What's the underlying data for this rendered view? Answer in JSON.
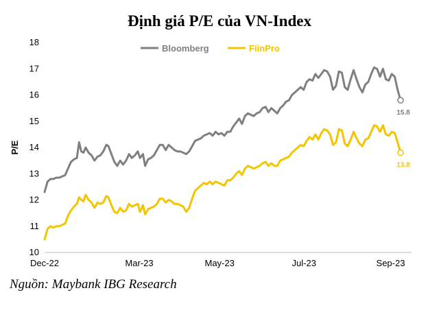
{
  "chart_data": {
    "type": "line",
    "title": "Định giá P/E của VN-Index",
    "ylabel": "P/E",
    "xlabel": "",
    "ylim": [
      10,
      18
    ],
    "yticks": [
      10,
      11,
      12,
      13,
      14,
      15,
      16,
      17,
      18
    ],
    "xlim": [
      0,
      100
    ],
    "xticks": [
      {
        "x": 0,
        "label": "Dec-22"
      },
      {
        "x": 25.8,
        "label": "Mar-23"
      },
      {
        "x": 47.7,
        "label": "May-23"
      },
      {
        "x": 70.7,
        "label": "Jul-23"
      },
      {
        "x": 94.3,
        "label": "Sep-23"
      }
    ],
    "grid": false,
    "legend": "top-center",
    "series": [
      {
        "name": "Bloomberg",
        "color": "#7f7f7f",
        "end_label": "15.8",
        "points": [
          [
            0,
            12.3
          ],
          [
            0.8,
            12.7
          ],
          [
            1.6,
            12.8
          ],
          [
            2.4,
            12.8
          ],
          [
            3.2,
            12.85
          ],
          [
            4.0,
            12.85
          ],
          [
            4.8,
            12.9
          ],
          [
            5.6,
            12.95
          ],
          [
            6.4,
            13.2
          ],
          [
            7.2,
            13.45
          ],
          [
            8.0,
            13.55
          ],
          [
            8.8,
            13.6
          ],
          [
            9.4,
            14.2
          ],
          [
            10.0,
            13.85
          ],
          [
            10.6,
            13.8
          ],
          [
            11.2,
            14.0
          ],
          [
            12.0,
            13.8
          ],
          [
            12.8,
            13.7
          ],
          [
            13.6,
            13.5
          ],
          [
            14.4,
            13.65
          ],
          [
            15.2,
            13.7
          ],
          [
            16.0,
            13.85
          ],
          [
            16.8,
            14.1
          ],
          [
            17.4,
            14.05
          ],
          [
            18.2,
            13.75
          ],
          [
            19.0,
            13.45
          ],
          [
            19.8,
            13.3
          ],
          [
            20.6,
            13.5
          ],
          [
            21.4,
            13.35
          ],
          [
            22.2,
            13.5
          ],
          [
            23.0,
            13.75
          ],
          [
            23.8,
            13.6
          ],
          [
            24.6,
            13.7
          ],
          [
            25.4,
            13.85
          ],
          [
            26.0,
            13.6
          ],
          [
            26.8,
            13.75
          ],
          [
            27.4,
            13.3
          ],
          [
            28.2,
            13.55
          ],
          [
            29.0,
            13.6
          ],
          [
            29.8,
            13.7
          ],
          [
            30.6,
            13.9
          ],
          [
            31.4,
            14.1
          ],
          [
            32.2,
            14.1
          ],
          [
            33.0,
            13.9
          ],
          [
            33.8,
            14.1
          ],
          [
            34.6,
            14.0
          ],
          [
            35.4,
            13.9
          ],
          [
            36.2,
            13.85
          ],
          [
            37.0,
            13.85
          ],
          [
            37.8,
            13.8
          ],
          [
            38.6,
            13.75
          ],
          [
            39.4,
            13.85
          ],
          [
            40.2,
            14.05
          ],
          [
            41.0,
            14.25
          ],
          [
            41.8,
            14.3
          ],
          [
            42.6,
            14.35
          ],
          [
            43.4,
            14.45
          ],
          [
            44.2,
            14.5
          ],
          [
            45.0,
            14.55
          ],
          [
            45.8,
            14.45
          ],
          [
            46.6,
            14.6
          ],
          [
            47.4,
            14.5
          ],
          [
            48.2,
            14.55
          ],
          [
            49.0,
            14.45
          ],
          [
            49.8,
            14.6
          ],
          [
            50.6,
            14.6
          ],
          [
            51.4,
            14.8
          ],
          [
            52.2,
            14.95
          ],
          [
            53.0,
            15.1
          ],
          [
            53.8,
            14.9
          ],
          [
            54.6,
            15.2
          ],
          [
            55.4,
            15.3
          ],
          [
            56.2,
            15.25
          ],
          [
            57.0,
            15.2
          ],
          [
            57.8,
            15.3
          ],
          [
            58.6,
            15.35
          ],
          [
            59.4,
            15.5
          ],
          [
            60.2,
            15.55
          ],
          [
            61.0,
            15.35
          ],
          [
            61.8,
            15.5
          ],
          [
            62.6,
            15.4
          ],
          [
            63.4,
            15.3
          ],
          [
            64.2,
            15.5
          ],
          [
            65.0,
            15.6
          ],
          [
            65.8,
            15.75
          ],
          [
            66.6,
            15.8
          ],
          [
            67.4,
            16.0
          ],
          [
            68.2,
            16.1
          ],
          [
            69.0,
            16.2
          ],
          [
            69.8,
            16.3
          ],
          [
            70.6,
            16.2
          ],
          [
            71.4,
            16.5
          ],
          [
            72.2,
            16.6
          ],
          [
            73.0,
            16.55
          ],
          [
            73.8,
            16.8
          ],
          [
            74.6,
            16.65
          ],
          [
            75.4,
            16.8
          ],
          [
            76.2,
            16.95
          ],
          [
            77.0,
            16.9
          ],
          [
            77.8,
            16.7
          ],
          [
            78.6,
            16.2
          ],
          [
            79.4,
            16.35
          ],
          [
            80.2,
            16.9
          ],
          [
            81.0,
            16.85
          ],
          [
            81.8,
            16.3
          ],
          [
            82.6,
            16.2
          ],
          [
            83.4,
            16.6
          ],
          [
            84.2,
            16.95
          ],
          [
            85.0,
            16.6
          ],
          [
            85.8,
            16.3
          ],
          [
            86.6,
            16.1
          ],
          [
            87.4,
            16.4
          ],
          [
            88.2,
            16.5
          ],
          [
            89.0,
            16.8
          ],
          [
            89.8,
            17.05
          ],
          [
            90.6,
            17.0
          ],
          [
            91.4,
            16.7
          ],
          [
            92.2,
            17.0
          ],
          [
            93.0,
            16.6
          ],
          [
            93.8,
            16.55
          ],
          [
            94.6,
            16.8
          ],
          [
            95.4,
            16.7
          ],
          [
            96.2,
            16.2
          ],
          [
            97.0,
            15.8
          ]
        ]
      },
      {
        "name": "FiinPro",
        "color": "#f5c400",
        "end_label": "13.8",
        "points": [
          [
            0,
            10.5
          ],
          [
            0.8,
            10.9
          ],
          [
            1.6,
            11.0
          ],
          [
            2.4,
            10.95
          ],
          [
            3.2,
            11.0
          ],
          [
            4.0,
            11.0
          ],
          [
            4.8,
            11.05
          ],
          [
            5.6,
            11.1
          ],
          [
            6.4,
            11.4
          ],
          [
            7.2,
            11.6
          ],
          [
            8.0,
            11.75
          ],
          [
            8.8,
            11.85
          ],
          [
            9.4,
            12.1
          ],
          [
            10.0,
            12.0
          ],
          [
            10.6,
            11.95
          ],
          [
            11.2,
            12.2
          ],
          [
            12.0,
            12.0
          ],
          [
            12.8,
            11.9
          ],
          [
            13.6,
            11.7
          ],
          [
            14.4,
            11.9
          ],
          [
            15.2,
            11.85
          ],
          [
            16.0,
            11.9
          ],
          [
            16.8,
            12.15
          ],
          [
            17.4,
            12.1
          ],
          [
            18.2,
            11.8
          ],
          [
            19.0,
            11.55
          ],
          [
            19.8,
            11.5
          ],
          [
            20.6,
            11.7
          ],
          [
            21.4,
            11.55
          ],
          [
            22.2,
            11.6
          ],
          [
            23.0,
            11.85
          ],
          [
            23.8,
            11.75
          ],
          [
            24.6,
            11.8
          ],
          [
            25.4,
            11.85
          ],
          [
            26.0,
            11.55
          ],
          [
            26.8,
            11.8
          ],
          [
            27.4,
            11.45
          ],
          [
            28.2,
            11.65
          ],
          [
            29.0,
            11.7
          ],
          [
            29.8,
            11.75
          ],
          [
            30.6,
            11.85
          ],
          [
            31.4,
            12.05
          ],
          [
            32.2,
            12.05
          ],
          [
            33.0,
            11.9
          ],
          [
            33.8,
            12.0
          ],
          [
            34.6,
            11.95
          ],
          [
            35.4,
            11.85
          ],
          [
            36.2,
            11.85
          ],
          [
            37.0,
            11.8
          ],
          [
            37.8,
            11.75
          ],
          [
            38.6,
            11.55
          ],
          [
            39.4,
            11.7
          ],
          [
            40.2,
            12.05
          ],
          [
            41.0,
            12.35
          ],
          [
            41.8,
            12.45
          ],
          [
            42.6,
            12.55
          ],
          [
            43.4,
            12.65
          ],
          [
            44.2,
            12.6
          ],
          [
            45.0,
            12.7
          ],
          [
            45.8,
            12.6
          ],
          [
            46.6,
            12.7
          ],
          [
            47.4,
            12.65
          ],
          [
            48.2,
            12.6
          ],
          [
            49.0,
            12.55
          ],
          [
            49.8,
            12.75
          ],
          [
            50.6,
            12.75
          ],
          [
            51.4,
            12.85
          ],
          [
            52.2,
            13.0
          ],
          [
            53.0,
            13.1
          ],
          [
            53.8,
            12.95
          ],
          [
            54.6,
            13.2
          ],
          [
            55.4,
            13.3
          ],
          [
            56.2,
            13.25
          ],
          [
            57.0,
            13.2
          ],
          [
            57.8,
            13.25
          ],
          [
            58.6,
            13.3
          ],
          [
            59.4,
            13.4
          ],
          [
            60.2,
            13.45
          ],
          [
            61.0,
            13.3
          ],
          [
            61.8,
            13.4
          ],
          [
            62.6,
            13.3
          ],
          [
            63.4,
            13.3
          ],
          [
            64.2,
            13.5
          ],
          [
            65.0,
            13.55
          ],
          [
            65.8,
            13.6
          ],
          [
            66.6,
            13.65
          ],
          [
            67.4,
            13.8
          ],
          [
            68.2,
            13.9
          ],
          [
            69.0,
            14.0
          ],
          [
            69.8,
            14.1
          ],
          [
            70.6,
            14.05
          ],
          [
            71.4,
            14.25
          ],
          [
            72.2,
            14.4
          ],
          [
            73.0,
            14.3
          ],
          [
            73.8,
            14.5
          ],
          [
            74.6,
            14.3
          ],
          [
            75.4,
            14.55
          ],
          [
            76.2,
            14.7
          ],
          [
            77.0,
            14.65
          ],
          [
            77.8,
            14.5
          ],
          [
            78.6,
            14.1
          ],
          [
            79.4,
            14.2
          ],
          [
            80.2,
            14.7
          ],
          [
            81.0,
            14.65
          ],
          [
            81.8,
            14.15
          ],
          [
            82.6,
            14.05
          ],
          [
            83.4,
            14.3
          ],
          [
            84.2,
            14.6
          ],
          [
            85.0,
            14.35
          ],
          [
            85.8,
            14.15
          ],
          [
            86.6,
            14.05
          ],
          [
            87.4,
            14.3
          ],
          [
            88.2,
            14.35
          ],
          [
            89.0,
            14.6
          ],
          [
            89.8,
            14.85
          ],
          [
            90.6,
            14.8
          ],
          [
            91.4,
            14.6
          ],
          [
            92.2,
            14.85
          ],
          [
            93.0,
            14.5
          ],
          [
            93.8,
            14.45
          ],
          [
            94.6,
            14.6
          ],
          [
            95.4,
            14.55
          ],
          [
            96.2,
            14.2
          ],
          [
            97.0,
            13.8
          ]
        ]
      }
    ]
  },
  "source": "Nguồn: Maybank IBG Research"
}
